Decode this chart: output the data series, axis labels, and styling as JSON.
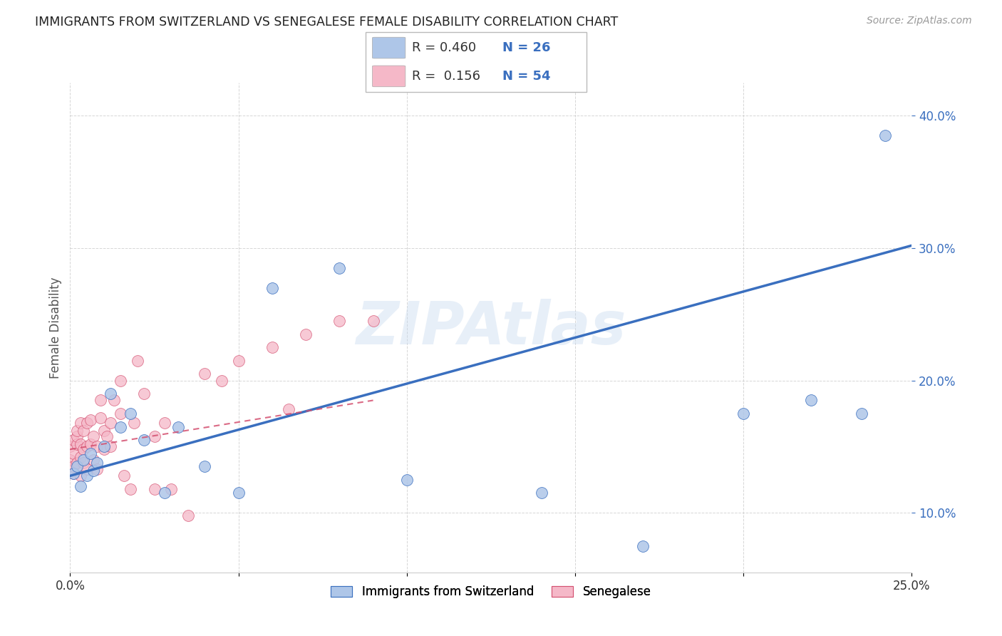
{
  "title": "IMMIGRANTS FROM SWITZERLAND VS SENEGALESE FEMALE DISABILITY CORRELATION CHART",
  "source": "Source: ZipAtlas.com",
  "ylabel": "Female Disability",
  "legend_label1": "Immigrants from Switzerland",
  "legend_label2": "Senegalese",
  "R1": 0.46,
  "N1": 26,
  "R2": 0.156,
  "N2": 54,
  "color1": "#aec6e8",
  "color2": "#f5b8c8",
  "line_color1": "#3a6fbf",
  "line_color2": "#d45070",
  "xlim": [
    0.0,
    0.25
  ],
  "ylim": [
    0.055,
    0.425
  ],
  "x_ticks": [
    0.0,
    0.05,
    0.1,
    0.15,
    0.2,
    0.25
  ],
  "y_ticks_right": [
    0.1,
    0.2,
    0.3,
    0.4
  ],
  "y_tick_labels_right": [
    "10.0%",
    "20.0%",
    "30.0%",
    "40.0%"
  ],
  "x_tick_labels": [
    "0.0%",
    "",
    "",
    "",
    "",
    "25.0%"
  ],
  "watermark": "ZIPAtlas",
  "blue_x": [
    0.001,
    0.002,
    0.003,
    0.004,
    0.005,
    0.006,
    0.007,
    0.008,
    0.01,
    0.012,
    0.015,
    0.018,
    0.022,
    0.028,
    0.032,
    0.04,
    0.05,
    0.06,
    0.08,
    0.1,
    0.14,
    0.17,
    0.2,
    0.22,
    0.235,
    0.242
  ],
  "blue_y": [
    0.13,
    0.135,
    0.12,
    0.14,
    0.128,
    0.145,
    0.132,
    0.138,
    0.15,
    0.19,
    0.165,
    0.175,
    0.155,
    0.115,
    0.165,
    0.135,
    0.115,
    0.27,
    0.285,
    0.125,
    0.115,
    0.075,
    0.175,
    0.185,
    0.175,
    0.385
  ],
  "pink_x": [
    0.0,
    0.0,
    0.001,
    0.001,
    0.001,
    0.001,
    0.002,
    0.002,
    0.002,
    0.002,
    0.003,
    0.003,
    0.003,
    0.003,
    0.004,
    0.004,
    0.004,
    0.005,
    0.005,
    0.005,
    0.006,
    0.006,
    0.007,
    0.007,
    0.008,
    0.008,
    0.009,
    0.009,
    0.01,
    0.01,
    0.011,
    0.012,
    0.012,
    0.013,
    0.015,
    0.015,
    0.016,
    0.018,
    0.019,
    0.02,
    0.022,
    0.025,
    0.025,
    0.028,
    0.03,
    0.035,
    0.04,
    0.045,
    0.05,
    0.06,
    0.065,
    0.07,
    0.08,
    0.09
  ],
  "pink_y": [
    0.14,
    0.15,
    0.13,
    0.145,
    0.155,
    0.135,
    0.138,
    0.152,
    0.158,
    0.162,
    0.128,
    0.142,
    0.152,
    0.168,
    0.138,
    0.148,
    0.162,
    0.133,
    0.15,
    0.168,
    0.152,
    0.17,
    0.14,
    0.158,
    0.133,
    0.15,
    0.172,
    0.185,
    0.148,
    0.162,
    0.158,
    0.15,
    0.168,
    0.185,
    0.175,
    0.2,
    0.128,
    0.118,
    0.168,
    0.215,
    0.19,
    0.158,
    0.118,
    0.168,
    0.118,
    0.098,
    0.205,
    0.2,
    0.215,
    0.225,
    0.178,
    0.235,
    0.245,
    0.245
  ],
  "blue_line_x0": 0.0,
  "blue_line_y0": 0.128,
  "blue_line_x1": 0.25,
  "blue_line_y1": 0.302,
  "pink_line_x0": 0.0,
  "pink_line_y0": 0.148,
  "pink_line_x1": 0.09,
  "pink_line_y1": 0.185
}
